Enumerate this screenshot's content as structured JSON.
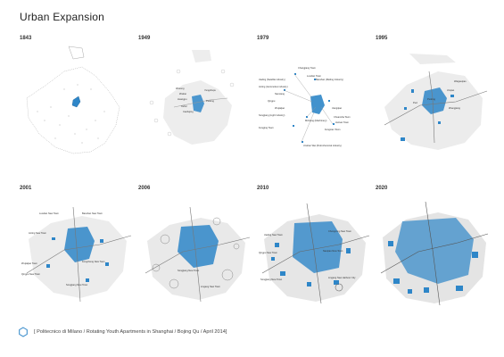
{
  "title": "Urban Expansion",
  "colors": {
    "urban": "#2e86c8",
    "land": "#e8e8e8",
    "line": "#9a9a9a",
    "text": "#333333"
  },
  "panels": [
    {
      "year": "1843",
      "labels": []
    },
    {
      "year": "1949",
      "labels": [
        "Wusong",
        "Yangshupu",
        "Zhabei",
        "Pudong",
        "Huangpu",
        "Xuhui",
        "Caohejing"
      ]
    },
    {
      "year": "1979",
      "labels": [
        "Changjiang Town",
        "Luodian Town",
        "Baoshan (Meiling Industry)",
        "Jiading (Satellite industry)",
        "Anting (Automotive industry)",
        "Nanxiang",
        "Qingpu",
        "Zhujiajiao",
        "Minhang (Machinery)",
        "Jiangqiao",
        "Songjiang (Light industry)",
        "Fengjing Town",
        "Chuansha Town",
        "Huinan Town",
        "Fengxian Town",
        "Jinshan Wei (Petrochemical industry)"
      ]
    },
    {
      "year": "1995",
      "labels": [
        "Pudong",
        "Puxi",
        "Jinqiao",
        "Zhangjiang",
        "Waigaoqiao"
      ]
    },
    {
      "year": "2001",
      "labels": [
        "Luodian New Town",
        "Anting New Town",
        "Baoshan New Town",
        "Songjiang New Town",
        "Zhujiajiao Town",
        "Fengcheng New Town",
        "Qingpu New Town"
      ]
    },
    {
      "year": "2006",
      "labels": [
        "Songjiang New Town",
        "Lingang New Town"
      ]
    },
    {
      "year": "2010",
      "labels": [
        "Jiading New Town",
        "Chongming New Town",
        "Qingpu New Town",
        "Songjiang New Town",
        "Nanqiao New Town",
        "Lingang New Harbour City"
      ]
    },
    {
      "year": "2020",
      "labels": []
    }
  ],
  "footer": {
    "logo_icon": "hexagon-icon",
    "text": "[ Politecnico di Milano / Rotating Youth Apartments in Shanghai / Bojing Qu / April 2014]"
  }
}
